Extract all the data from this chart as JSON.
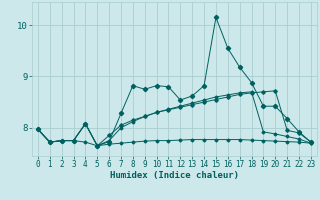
{
  "title": "",
  "xlabel": "Humidex (Indice chaleur)",
  "background_color": "#cce8ea",
  "grid_color": "#aacdd0",
  "line_color": "#006060",
  "xlim": [
    -0.5,
    23.5
  ],
  "ylim": [
    7.45,
    10.45
  ],
  "yticks": [
    8,
    9,
    10
  ],
  "xticks": [
    0,
    1,
    2,
    3,
    4,
    5,
    6,
    7,
    8,
    9,
    10,
    11,
    12,
    13,
    14,
    15,
    16,
    17,
    18,
    19,
    20,
    21,
    22,
    23
  ],
  "series1": [
    7.97,
    7.72,
    7.75,
    7.75,
    8.08,
    7.65,
    7.73,
    8.28,
    8.82,
    8.75,
    8.82,
    8.8,
    8.54,
    8.62,
    8.82,
    10.15,
    9.55,
    9.18,
    8.88,
    8.42,
    8.42,
    8.18,
    7.92,
    7.72
  ],
  "series2": [
    7.97,
    7.72,
    7.75,
    7.75,
    8.08,
    7.65,
    7.85,
    8.05,
    8.15,
    8.22,
    8.3,
    8.35,
    8.4,
    8.45,
    8.5,
    8.55,
    8.6,
    8.65,
    8.68,
    8.7,
    8.72,
    7.95,
    7.9,
    7.72
  ],
  "series3": [
    7.97,
    7.72,
    7.75,
    7.75,
    7.72,
    7.65,
    7.68,
    7.7,
    7.72,
    7.74,
    7.75,
    7.75,
    7.76,
    7.77,
    7.77,
    7.77,
    7.77,
    7.77,
    7.76,
    7.75,
    7.74,
    7.73,
    7.72,
    7.7
  ],
  "series4": [
    7.97,
    7.72,
    7.75,
    7.75,
    8.08,
    7.65,
    7.75,
    8.0,
    8.12,
    8.22,
    8.3,
    8.36,
    8.42,
    8.48,
    8.54,
    8.6,
    8.64,
    8.68,
    8.7,
    7.92,
    7.88,
    7.83,
    7.78,
    7.7
  ]
}
